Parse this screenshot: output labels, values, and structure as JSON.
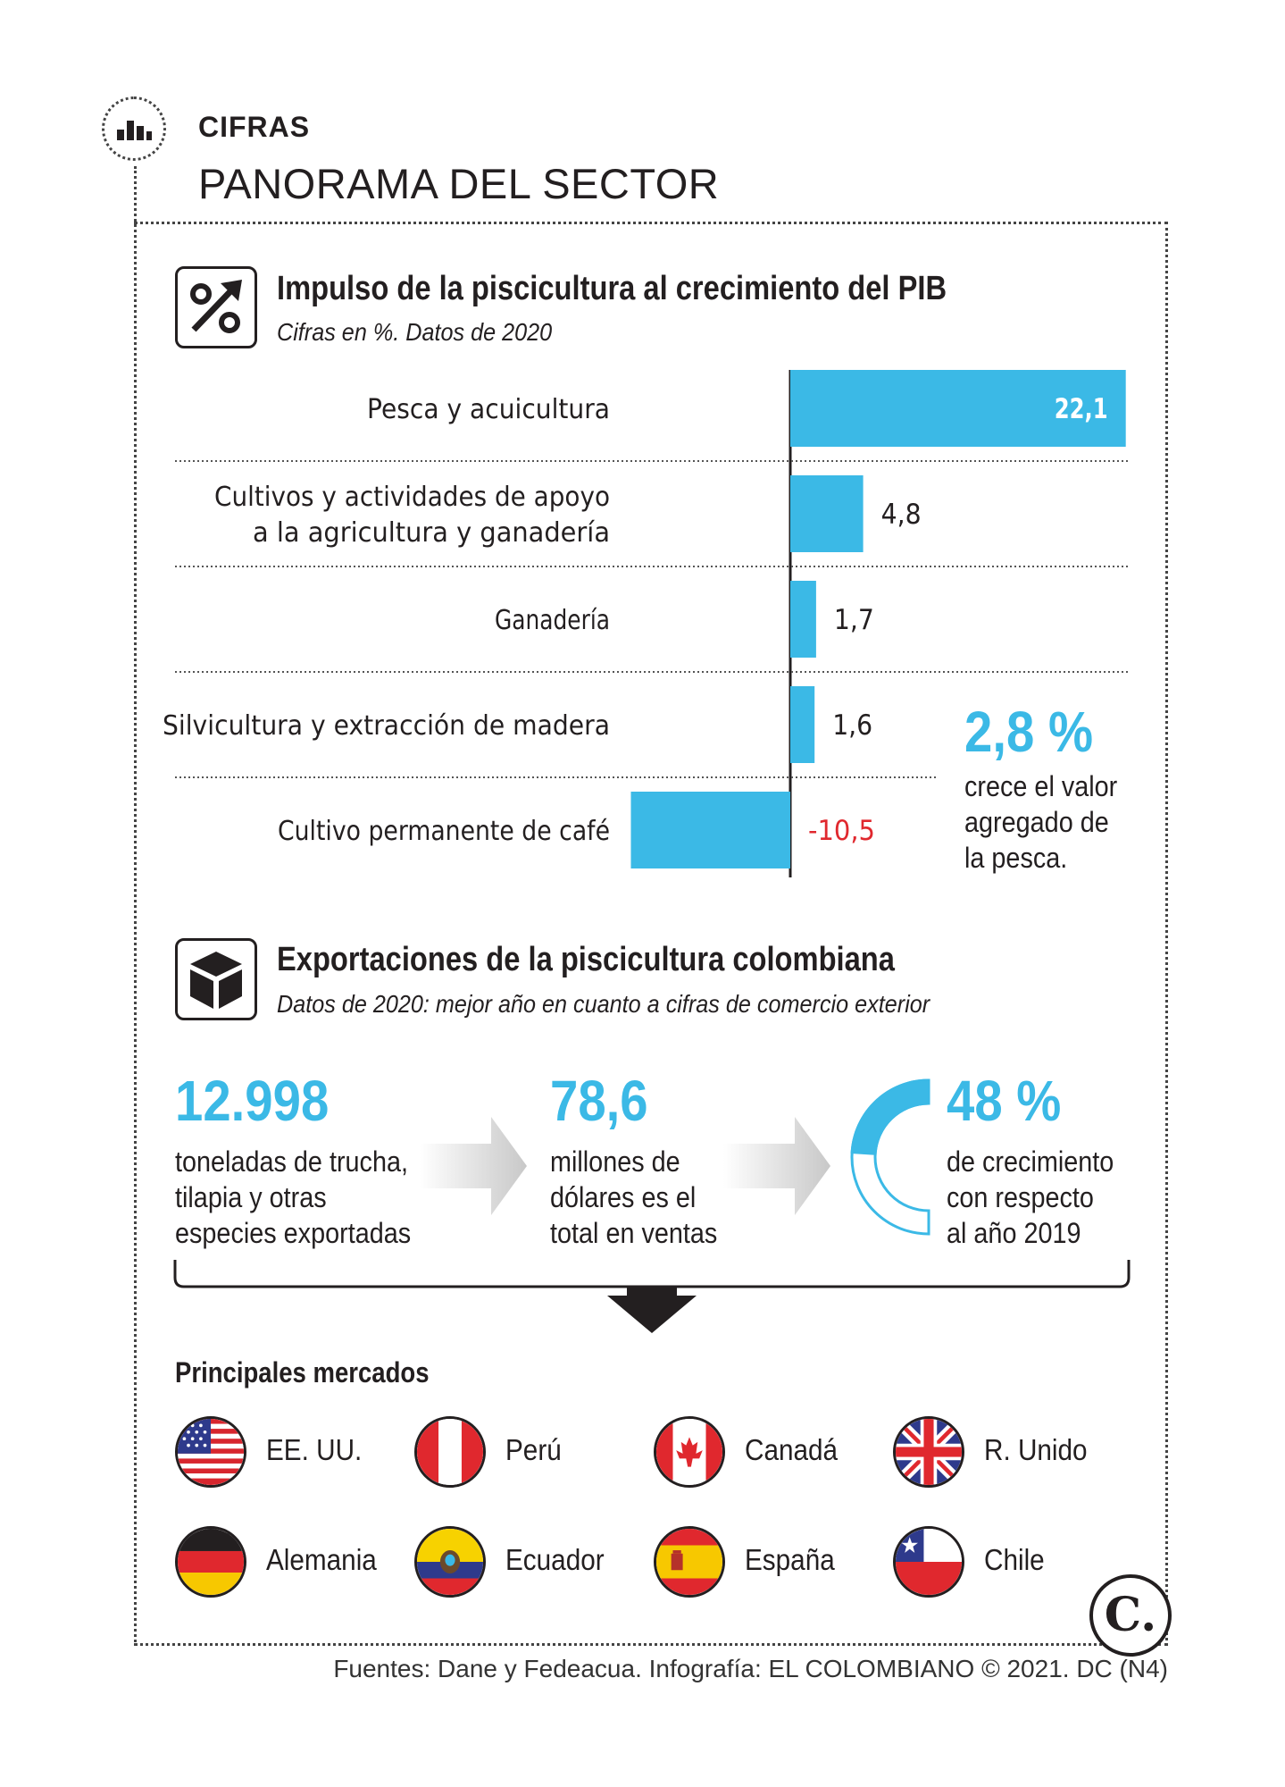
{
  "header": {
    "kicker": "CIFRAS",
    "headline": "PANORAMA DEL SECTOR"
  },
  "section1": {
    "title": "Impulso de la piscicultura al crecimiento del PIB",
    "subtitle": "Cifras en %. Datos de 2020",
    "icon": "percent-growth-icon",
    "highlight": {
      "value": "2,8 %",
      "lines": [
        "crece el valor",
        "agregado de",
        "la  pesca."
      ]
    }
  },
  "chart_data": {
    "type": "bar",
    "orientation": "horizontal",
    "title": "Impulso de la piscicultura al crecimiento del PIB",
    "subtitle": "Cifras en %. Datos de 2020",
    "categories": [
      [
        "Pesca y acuicultura"
      ],
      [
        "Cultivos y actividades de apoyo",
        "a la agricultura y ganadería"
      ],
      [
        "Ganadería"
      ],
      [
        "Silvicultura y extracción de madera"
      ],
      [
        "Cultivo permanente de café"
      ]
    ],
    "values": [
      22.1,
      4.8,
      1.7,
      1.6,
      -10.5
    ],
    "value_labels": [
      "22,1",
      "4,8",
      "1,7",
      "1,6",
      "-10,5"
    ],
    "bar_color": "#3bb9e6",
    "negative_label_color": "#e0282e",
    "grid": false
  },
  "section2": {
    "title": "Exportaciones de la piscicultura colombiana",
    "subtitle": "Datos de 2020: mejor año en cuanto a cifras de comercio exterior",
    "icon": "package-box-icon",
    "stats": [
      {
        "value": "12.998",
        "lines": [
          "toneladas de trucha,",
          "tilapia y otras",
          "especies exportadas"
        ]
      },
      {
        "value": "78,6",
        "lines": [
          "millones de",
          "dólares es el",
          "total en ventas"
        ]
      },
      {
        "value": "48 %",
        "lines": [
          "de crecimiento",
          "con respecto",
          "al año 2019"
        ],
        "ring_fraction": 0.48
      }
    ]
  },
  "markets": {
    "title": "Principales mercados",
    "items": [
      {
        "name": "EE. UU.",
        "icon": "usa-flag-icon"
      },
      {
        "name": "Perú",
        "icon": "peru-flag-icon"
      },
      {
        "name": "Canadá",
        "icon": "canada-flag-icon"
      },
      {
        "name": "R. Unido",
        "icon": "uk-flag-icon"
      },
      {
        "name": "Alemania",
        "icon": "germany-flag-icon"
      },
      {
        "name": "Ecuador",
        "icon": "ecuador-flag-icon"
      },
      {
        "name": "España",
        "icon": "spain-flag-icon"
      },
      {
        "name": "Chile",
        "icon": "chile-flag-icon"
      }
    ]
  },
  "brand": {
    "logo_text": "C."
  },
  "footer": "Fuentes: Dane y Fedeacua. Infografía: EL COLOMBIANO © 2021. DC (N4)",
  "colors": {
    "accent": "#3bb9e6",
    "negative": "#e0282e",
    "ink": "#231f20"
  }
}
